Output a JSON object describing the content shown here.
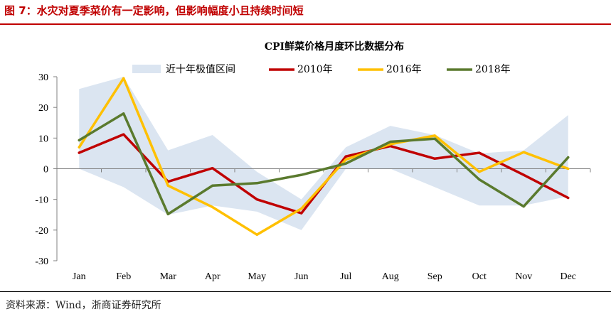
{
  "figure": {
    "title": "图 7：水灾对夏季菜价有一定影响，但影响幅度小且持续时间短",
    "source": "资料来源：Wind，浙商证券研究所"
  },
  "colors": {
    "title": "#c00000",
    "band": "#dbe5f1",
    "s2010": "#c00000",
    "s2016": "#ffc000",
    "s2018": "#5a7a2e"
  },
  "chart_data": {
    "type": "line",
    "title": "CPI鲜菜价格月度环比数据分布",
    "xlabel": "",
    "ylabel": "",
    "ylim": [
      -30,
      30
    ],
    "yticks": [
      -30,
      -20,
      -10,
      0,
      10,
      20,
      30
    ],
    "grid": false,
    "legend_position": "top",
    "categories": [
      "Jan",
      "Feb",
      "Mar",
      "Apr",
      "May",
      "Jun",
      "Jul",
      "Aug",
      "Sep",
      "Oct",
      "Nov",
      "Dec"
    ],
    "band": {
      "name": "近十年极值区间",
      "upper": [
        26,
        30,
        6,
        11,
        -1,
        -10,
        7,
        14,
        11,
        5,
        6,
        17.5
      ],
      "lower": [
        0,
        -6,
        -15,
        -12,
        -14,
        -20,
        0,
        0,
        -6,
        -12,
        -12,
        -9
      ]
    },
    "series": [
      {
        "name": "2010年",
        "values": [
          5.2,
          11.2,
          -4.2,
          0.2,
          -10,
          -14.5,
          4,
          7.4,
          3.3,
          5.2,
          -2,
          -9.5
        ]
      },
      {
        "name": "2016年",
        "values": [
          7,
          29.5,
          -5.5,
          -12.5,
          -21.5,
          -13,
          3,
          8,
          10.8,
          -1,
          5.4,
          0
        ]
      },
      {
        "name": "2018年",
        "values": [
          9.3,
          18,
          -14.8,
          -5.5,
          -4.7,
          -2,
          1.7,
          8.8,
          9.8,
          -3.5,
          -12.3,
          3.7
        ]
      }
    ]
  }
}
